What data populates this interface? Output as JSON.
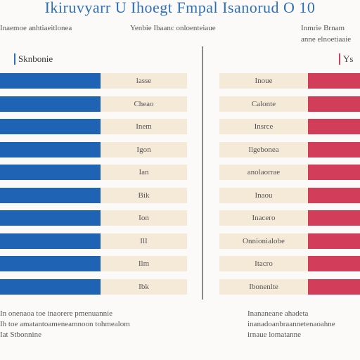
{
  "header": {
    "title_left": "Ikiruvyarr U Ihoegt",
    "title_right": "Fmpal Isanorud O 10",
    "subhead_left": "Inaemoe anhtiaeitlonea",
    "subhead_center": "Yenbie Ibaanc onloenteiaue",
    "subhead_right_1": "Inmrie Brnam",
    "subhead_right_2": "anne elnoetiaaie"
  },
  "left_panel": {
    "tag": "Sknbonie",
    "rows": [
      "lasse",
      "Cheao",
      "Inem",
      "Igon",
      "Ian",
      "Bik",
      "Ion",
      "IlI",
      "Ilm",
      "Ibk"
    ]
  },
  "right_panel": {
    "tag": "Ys",
    "rows": [
      "Inoue",
      "Calonte",
      "Insrce",
      "Ilgebonea",
      "anolaorrae",
      "Inaou",
      "Inacero",
      "Onnionialobe",
      "Itacro",
      "Ibonenlte"
    ]
  },
  "footer": {
    "left_line1": "In onenaoa toe inaorere pmenuannie",
    "left_line2": "Ih toe amatantoameneamnoon tohmealom",
    "left_line3": "Iat Stbonnine",
    "right_line1": "Inananeane ahadeta",
    "right_line2": "inanadoanbraannetenaoahne",
    "right_line3": "irnaue lomatanne"
  },
  "colors": {
    "left_bar": "#1f64b4",
    "right_bar": "#d23d5a",
    "cell": "#f5e9d7",
    "title": "#2f6fb8"
  }
}
